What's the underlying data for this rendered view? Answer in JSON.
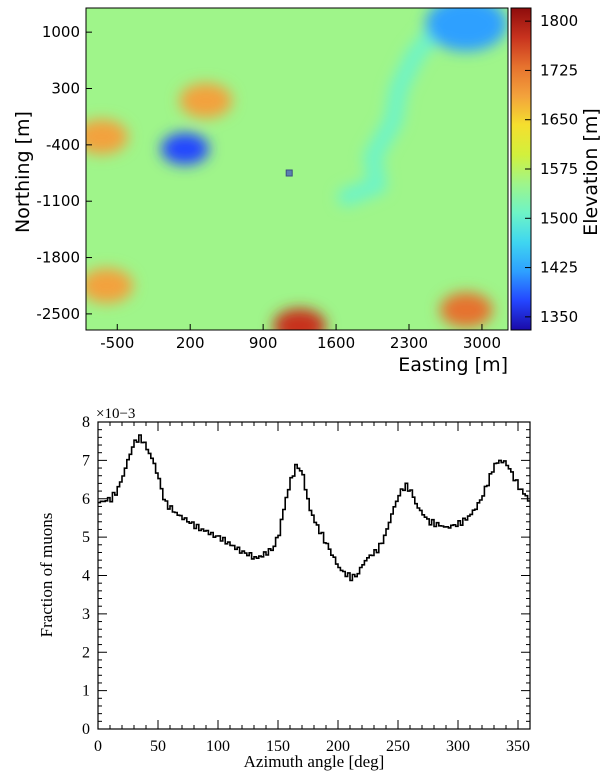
{
  "chart_data": [
    {
      "type": "heatmap",
      "xlabel": "Easting [m]",
      "ylabel": "Northing [m]",
      "xticks": [
        "-500",
        "200",
        "900",
        "1600",
        "2300",
        "3000"
      ],
      "yticks": [
        "1000",
        "300",
        "-400",
        "-1100",
        "-1800",
        "-2500"
      ],
      "xlim": [
        -800,
        3250
      ],
      "ylim": [
        -2700,
        1300
      ],
      "colorbar": {
        "label": "Elevation [m]",
        "ticks": [
          "1800",
          "1725",
          "1650",
          "1575",
          "1500",
          "1425",
          "1350"
        ],
        "range": [
          1330,
          1820
        ],
        "colors": [
          "#1a0aa8",
          "#2446ff",
          "#2ea0ff",
          "#3fd6f0",
          "#6ef4c6",
          "#9ff58a",
          "#d2f03c",
          "#f5df2e",
          "#f3a23c",
          "#e6722e",
          "#c8321e",
          "#8e0c0c"
        ]
      },
      "marker": {
        "easting": 1150,
        "northing": -750
      },
      "features": [
        {
          "kind": "depression",
          "easting": 150,
          "northing": -450,
          "elevation": 1390
        },
        {
          "kind": "valley",
          "path": [
            [
              2700,
              1250
            ],
            [
              2350,
              700
            ],
            [
              2200,
              300
            ],
            [
              2150,
              -100
            ],
            [
              1950,
              -550
            ],
            [
              2000,
              -900
            ],
            [
              1700,
              -1050
            ]
          ],
          "elevation": 1500
        },
        {
          "kind": "basin",
          "easting": 2850,
          "northing": 1100,
          "elevation": 1400
        },
        {
          "kind": "ridge",
          "easting": -650,
          "northing": -300,
          "elevation": 1690
        },
        {
          "kind": "ridge",
          "easting": 350,
          "northing": 150,
          "elevation": 1700
        },
        {
          "kind": "ridge",
          "easting": 1250,
          "northing": -2650,
          "elevation": 1760
        },
        {
          "kind": "ridge",
          "easting": 2850,
          "northing": -2450,
          "elevation": 1740
        },
        {
          "kind": "ridge",
          "easting": -600,
          "northing": -2150,
          "elevation": 1690
        }
      ]
    },
    {
      "type": "line",
      "style": "step",
      "xlabel": "Azimuth angle [deg]",
      "ylabel": "Fraction of muons",
      "y_multiplier": "×10−3",
      "xlim": [
        0,
        360
      ],
      "ylim": [
        0,
        8
      ],
      "xticks": [
        "0",
        "50",
        "100",
        "150",
        "200",
        "250",
        "300",
        "350"
      ],
      "yticks": [
        "0",
        "1",
        "2",
        "3",
        "4",
        "5",
        "6",
        "7",
        "8"
      ],
      "series": [
        {
          "x": [
            0,
            5,
            10,
            15,
            20,
            25,
            30,
            35,
            40,
            45,
            50,
            55,
            60,
            65,
            70,
            75,
            80,
            85,
            90,
            95,
            100,
            105,
            110,
            115,
            120,
            125,
            130,
            135,
            140,
            145,
            150,
            155,
            160,
            165,
            170,
            175,
            180,
            185,
            190,
            195,
            200,
            205,
            210,
            215,
            220,
            225,
            230,
            235,
            240,
            245,
            250,
            255,
            260,
            265,
            270,
            275,
            280,
            285,
            290,
            295,
            300,
            305,
            310,
            315,
            320,
            325,
            330,
            335,
            340,
            345,
            350,
            355,
            360
          ],
          "y": [
            5.9,
            5.95,
            6.0,
            6.2,
            6.6,
            7.1,
            7.5,
            7.6,
            7.3,
            7.0,
            6.5,
            5.9,
            5.75,
            5.6,
            5.5,
            5.4,
            5.3,
            5.2,
            5.15,
            5.05,
            5.0,
            4.9,
            4.8,
            4.7,
            4.6,
            4.55,
            4.45,
            4.5,
            4.6,
            4.7,
            5.1,
            5.9,
            6.5,
            6.9,
            6.6,
            5.8,
            5.4,
            5.1,
            4.8,
            4.5,
            4.2,
            4.05,
            3.95,
            4.0,
            4.3,
            4.5,
            4.6,
            4.8,
            5.2,
            5.7,
            6.1,
            6.35,
            6.2,
            5.8,
            5.6,
            5.4,
            5.35,
            5.3,
            5.25,
            5.3,
            5.35,
            5.45,
            5.6,
            5.8,
            6.1,
            6.5,
            6.9,
            7.0,
            6.9,
            6.6,
            6.3,
            6.1,
            5.9
          ]
        }
      ]
    }
  ]
}
